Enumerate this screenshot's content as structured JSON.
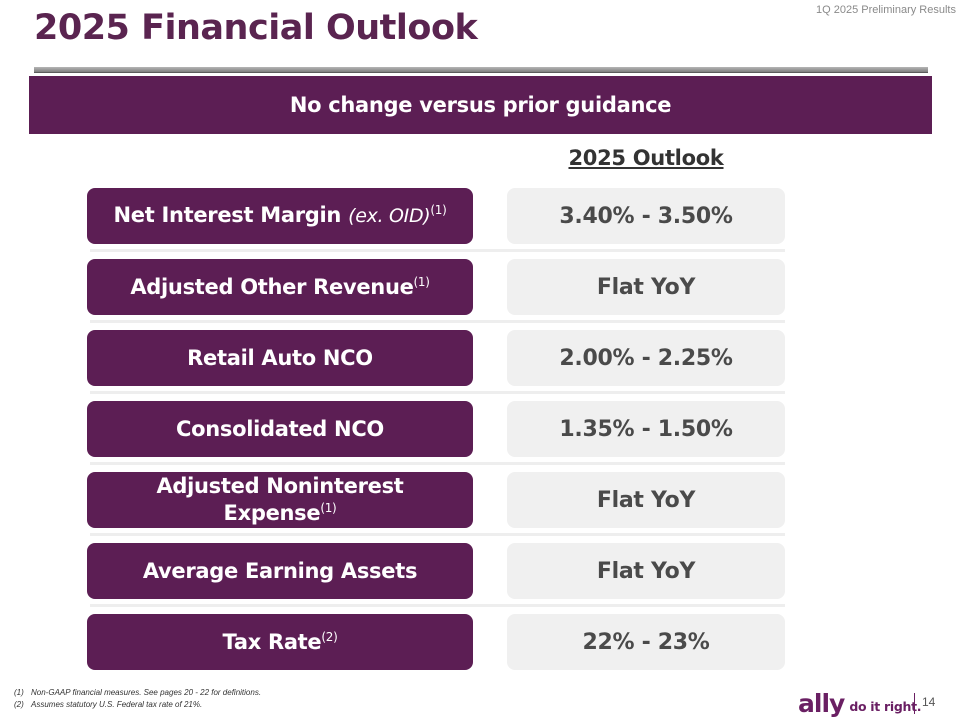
{
  "header": {
    "tag": "1Q 2025 Preliminary Results",
    "title": "2025 Financial Outlook"
  },
  "banner": {
    "text": "No change versus prior guidance"
  },
  "table": {
    "column_header": "2025 Outlook",
    "rows": [
      {
        "label": "Net Interest Margin",
        "label_em": "(ex. OID)",
        "sup": "(1)",
        "value": "3.40% - 3.50%"
      },
      {
        "label": "Adjusted Other Revenue",
        "sup": "(1)",
        "value": "Flat YoY"
      },
      {
        "label": "Retail Auto NCO",
        "value": "2.00% - 2.25%"
      },
      {
        "label": "Consolidated NCO",
        "value": "1.35% - 1.50%"
      },
      {
        "label_line1": "Adjusted Noninterest",
        "label_line2": "Expense",
        "sup": "(1)",
        "value": "Flat YoY"
      },
      {
        "label": "Average Earning Assets",
        "value": "Flat YoY"
      },
      {
        "label": "Tax Rate",
        "sup": "(2)",
        "value": "22% - 23%"
      }
    ]
  },
  "footnotes": [
    {
      "num": "(1)",
      "text": "Non-GAAP financial measures. See pages 20 - 22 for definitions."
    },
    {
      "num": "(2)",
      "text": "Assumes statutory U.S. Federal tax rate of 21%."
    }
  ],
  "footer": {
    "brand": "ally",
    "tagline": "do it right.",
    "page_number": "14"
  }
}
